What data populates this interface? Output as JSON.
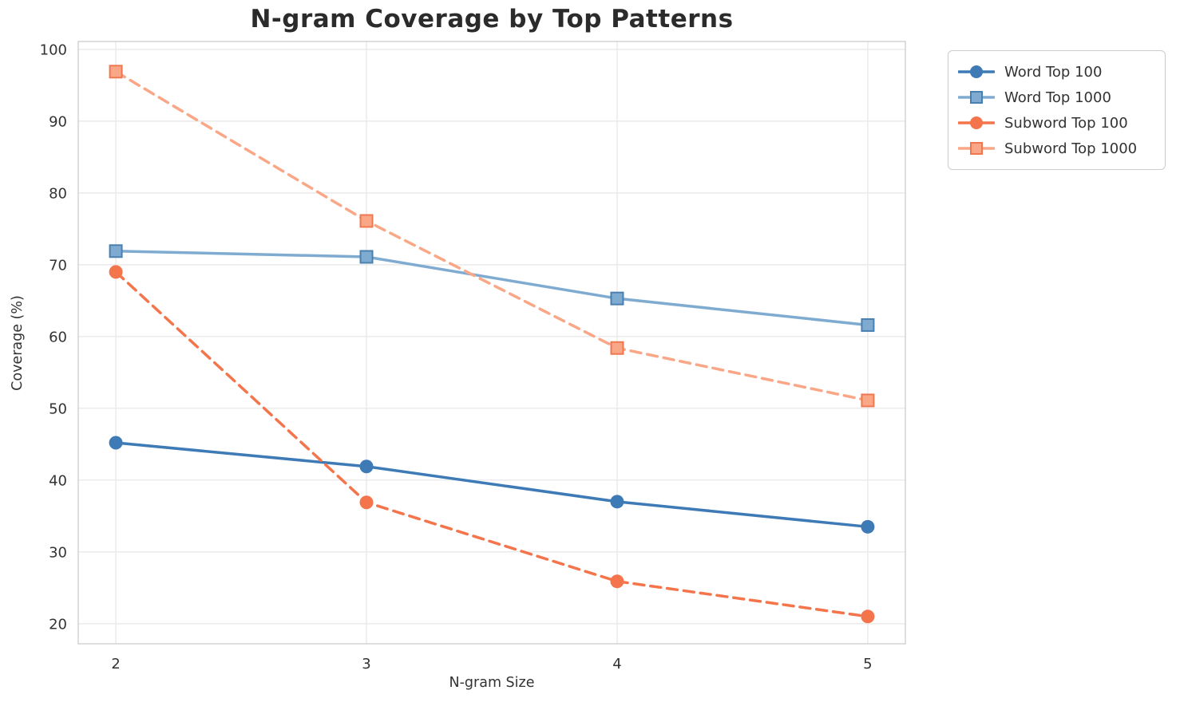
{
  "figure": {
    "background": "#ffffff"
  },
  "chart_data": {
    "type": "line",
    "title": "N-gram Coverage by Top Patterns",
    "xlabel": "N-gram Size",
    "ylabel": "Coverage (%)",
    "x": [
      2,
      3,
      4,
      5
    ],
    "xticks": [
      "2",
      "3",
      "4",
      "5"
    ],
    "yticks": [
      20,
      30,
      40,
      50,
      60,
      70,
      80,
      90,
      100
    ],
    "xlim": [
      1.85,
      5.15
    ],
    "ylim": [
      17.2,
      101.1
    ],
    "grid": true,
    "legend_position": "upper-right-outside",
    "series": [
      {
        "name": "Word Top 100",
        "color": "#3d7ab6",
        "edge": "#3d7ab6",
        "marker": "circle",
        "line": "solid",
        "values": [
          45.2,
          41.9,
          37.0,
          33.5
        ]
      },
      {
        "name": "Word Top 1000",
        "color": "#7fabd1",
        "edge": "#4a80b0",
        "marker": "square",
        "line": "solid",
        "values": [
          71.9,
          71.1,
          65.3,
          61.6
        ]
      },
      {
        "name": "Subword Top 100",
        "color": "#f4744b",
        "edge": "#f4744b",
        "marker": "circle",
        "line": "dashed",
        "values": [
          69.0,
          36.9,
          25.9,
          21.0
        ]
      },
      {
        "name": "Subword Top 1000",
        "color": "#f9a787",
        "edge": "#f07850",
        "marker": "square",
        "line": "dashed",
        "values": [
          96.9,
          76.1,
          58.4,
          51.1
        ]
      }
    ],
    "style": {
      "grid_color": "#e9e9e9",
      "spine_color": "#cfcfcf",
      "tick_text_color": "#333333",
      "title_color": "#2b2b2b"
    }
  }
}
